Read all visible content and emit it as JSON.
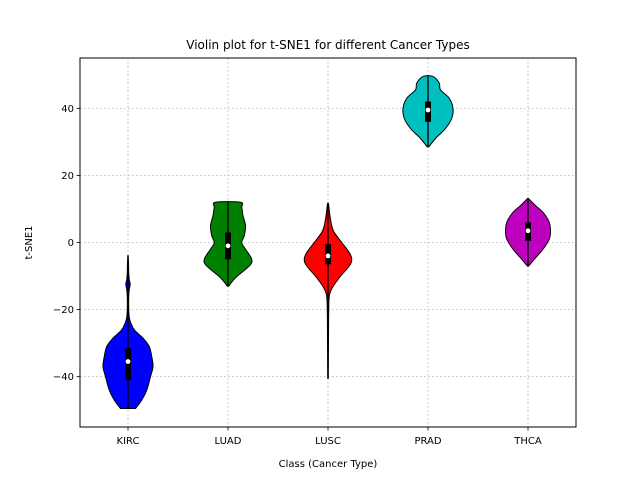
{
  "chart_data": {
    "type": "violin",
    "title": "Violin plot for t-SNE1 for different Cancer Types",
    "xlabel": "Class (Cancer Type)",
    "ylabel": "t-SNE1",
    "ylim": [
      -55,
      55
    ],
    "yticks": [
      -40,
      -20,
      0,
      20,
      40
    ],
    "grid": true,
    "categories": [
      "KIRC",
      "LUAD",
      "LUSC",
      "PRAD",
      "THCA"
    ],
    "series": [
      {
        "category": "KIRC",
        "color": "#0000ff",
        "min": -49.5,
        "q1": -41,
        "median": -35.5,
        "q3": -31.5,
        "max": -4,
        "density": [
          [
            -49.5,
            0.3
          ],
          [
            -47,
            0.55
          ],
          [
            -44,
            0.75
          ],
          [
            -40,
            0.9
          ],
          [
            -37,
            1.0
          ],
          [
            -34,
            0.95
          ],
          [
            -31,
            0.85
          ],
          [
            -28.5,
            0.6
          ],
          [
            -26,
            0.25
          ],
          [
            -23,
            0.07
          ],
          [
            -20,
            0.03
          ],
          [
            -16,
            0.03
          ],
          [
            -14,
            0.05
          ],
          [
            -12.5,
            0.09
          ],
          [
            -11,
            0.05
          ],
          [
            -9,
            0.03
          ],
          [
            -6,
            0.02
          ],
          [
            -4,
            0.005
          ]
        ]
      },
      {
        "category": "LUAD",
        "color": "#008000",
        "min": -13,
        "q1": -5,
        "median": -1,
        "q3": 3,
        "max": 12,
        "density": [
          [
            -13,
            0.03
          ],
          [
            -10.5,
            0.3
          ],
          [
            -7,
            0.85
          ],
          [
            -5,
            0.95
          ],
          [
            -2,
            0.7
          ],
          [
            0,
            0.55
          ],
          [
            2,
            0.65
          ],
          [
            5,
            0.7
          ],
          [
            8,
            0.6
          ],
          [
            10.5,
            0.55
          ],
          [
            12,
            0.5
          ]
        ]
      },
      {
        "category": "LUSC",
        "color": "#ff0000",
        "min": -40.5,
        "q1": -6.5,
        "median": -4,
        "q3": -0.5,
        "max": 11.5,
        "density": [
          [
            -40.5,
            0.01
          ],
          [
            -30,
            0.02
          ],
          [
            -20,
            0.03
          ],
          [
            -15,
            0.08
          ],
          [
            -11,
            0.4
          ],
          [
            -7,
            0.85
          ],
          [
            -5,
            0.95
          ],
          [
            -3,
            0.85
          ],
          [
            0,
            0.55
          ],
          [
            3,
            0.25
          ],
          [
            5,
            0.15
          ],
          [
            7,
            0.1
          ],
          [
            9,
            0.06
          ],
          [
            11.5,
            0.02
          ]
        ]
      },
      {
        "category": "PRAD",
        "color": "#00bfbf",
        "min": 28.5,
        "q1": 36,
        "median": 39.5,
        "q3": 42,
        "max": 49.5,
        "density": [
          [
            28.5,
            0.03
          ],
          [
            31,
            0.3
          ],
          [
            34,
            0.7
          ],
          [
            37,
            0.95
          ],
          [
            40,
            1.0
          ],
          [
            43,
            0.85
          ],
          [
            45.5,
            0.5
          ],
          [
            47.5,
            0.45
          ],
          [
            49.5,
            0.2
          ]
        ]
      },
      {
        "category": "THCA",
        "color": "#bf00bf",
        "min": -7,
        "q1": 0.5,
        "median": 3.5,
        "q3": 6,
        "max": 13,
        "density": [
          [
            -7,
            0.03
          ],
          [
            -5,
            0.25
          ],
          [
            -2,
            0.6
          ],
          [
            1,
            0.85
          ],
          [
            3,
            0.9
          ],
          [
            6,
            0.85
          ],
          [
            9,
            0.6
          ],
          [
            11,
            0.3
          ],
          [
            13,
            0.03
          ]
        ]
      }
    ]
  }
}
